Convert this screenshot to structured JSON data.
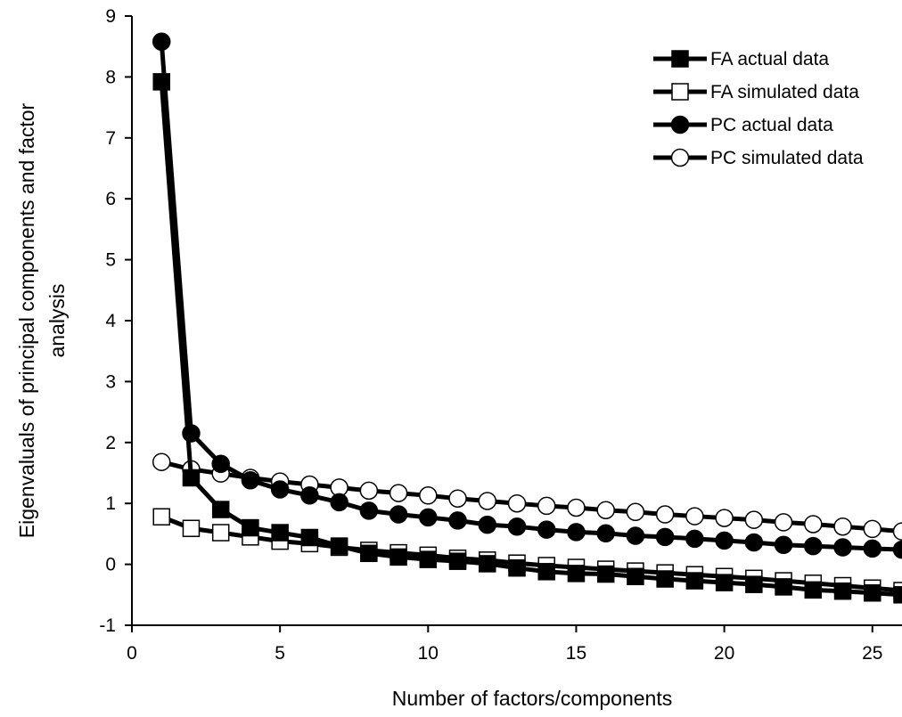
{
  "chart_data": {
    "type": "line",
    "title": "",
    "xlabel": "Number of factors/components",
    "ylabel_lines": [
      "Eigenvaluals of principal components and factor",
      "analysis"
    ],
    "xlim": [
      0,
      26
    ],
    "ylim": [
      -1,
      9
    ],
    "x_ticks": [
      0,
      5,
      10,
      15,
      20,
      25
    ],
    "y_ticks": [
      -1,
      0,
      1,
      2,
      3,
      4,
      5,
      6,
      7,
      8,
      9
    ],
    "grid": false,
    "legend_position": "top-right",
    "series": [
      {
        "name": "FA actual data",
        "marker": "square",
        "filled": true,
        "x": [
          1,
          2,
          3,
          4,
          5,
          6,
          7,
          8,
          9,
          10,
          11,
          12,
          13,
          14,
          15,
          16,
          17,
          18,
          19,
          20,
          21,
          22,
          23,
          24,
          25,
          26
        ],
        "y": [
          7.92,
          1.42,
          0.9,
          0.6,
          0.52,
          0.44,
          0.3,
          0.18,
          0.12,
          0.08,
          0.05,
          0.01,
          -0.06,
          -0.12,
          -0.15,
          -0.16,
          -0.2,
          -0.24,
          -0.27,
          -0.3,
          -0.33,
          -0.37,
          -0.42,
          -0.44,
          -0.47,
          -0.5
        ]
      },
      {
        "name": "FA simulated data",
        "marker": "square",
        "filled": false,
        "x": [
          1,
          2,
          3,
          4,
          5,
          6,
          7,
          8,
          9,
          10,
          11,
          12,
          13,
          14,
          15,
          16,
          17,
          18,
          19,
          20,
          21,
          22,
          23,
          24,
          25,
          26
        ],
        "y": [
          0.78,
          0.59,
          0.52,
          0.45,
          0.38,
          0.34,
          0.28,
          0.23,
          0.19,
          0.15,
          0.1,
          0.07,
          0.02,
          -0.02,
          -0.05,
          -0.08,
          -0.11,
          -0.14,
          -0.17,
          -0.2,
          -0.23,
          -0.27,
          -0.31,
          -0.35,
          -0.39,
          -0.43
        ]
      },
      {
        "name": "PC actual data",
        "marker": "circle",
        "filled": true,
        "x": [
          1,
          2,
          3,
          4,
          5,
          6,
          7,
          8,
          9,
          10,
          11,
          12,
          13,
          14,
          15,
          16,
          17,
          18,
          19,
          20,
          21,
          22,
          23,
          24,
          25,
          26
        ],
        "y": [
          8.58,
          2.15,
          1.65,
          1.38,
          1.23,
          1.13,
          1.02,
          0.88,
          0.82,
          0.77,
          0.72,
          0.65,
          0.62,
          0.57,
          0.53,
          0.51,
          0.47,
          0.45,
          0.42,
          0.39,
          0.36,
          0.32,
          0.3,
          0.28,
          0.26,
          0.24
        ]
      },
      {
        "name": "PC simulated data",
        "marker": "circle",
        "filled": false,
        "x": [
          1,
          2,
          3,
          4,
          5,
          6,
          7,
          8,
          9,
          10,
          11,
          12,
          13,
          14,
          15,
          16,
          17,
          18,
          19,
          20,
          21,
          22,
          23,
          24,
          25,
          26
        ],
        "y": [
          1.68,
          1.56,
          1.49,
          1.42,
          1.36,
          1.31,
          1.26,
          1.21,
          1.17,
          1.13,
          1.08,
          1.04,
          1.0,
          0.96,
          0.93,
          0.89,
          0.86,
          0.82,
          0.79,
          0.76,
          0.73,
          0.69,
          0.66,
          0.62,
          0.58,
          0.54
        ]
      }
    ]
  }
}
